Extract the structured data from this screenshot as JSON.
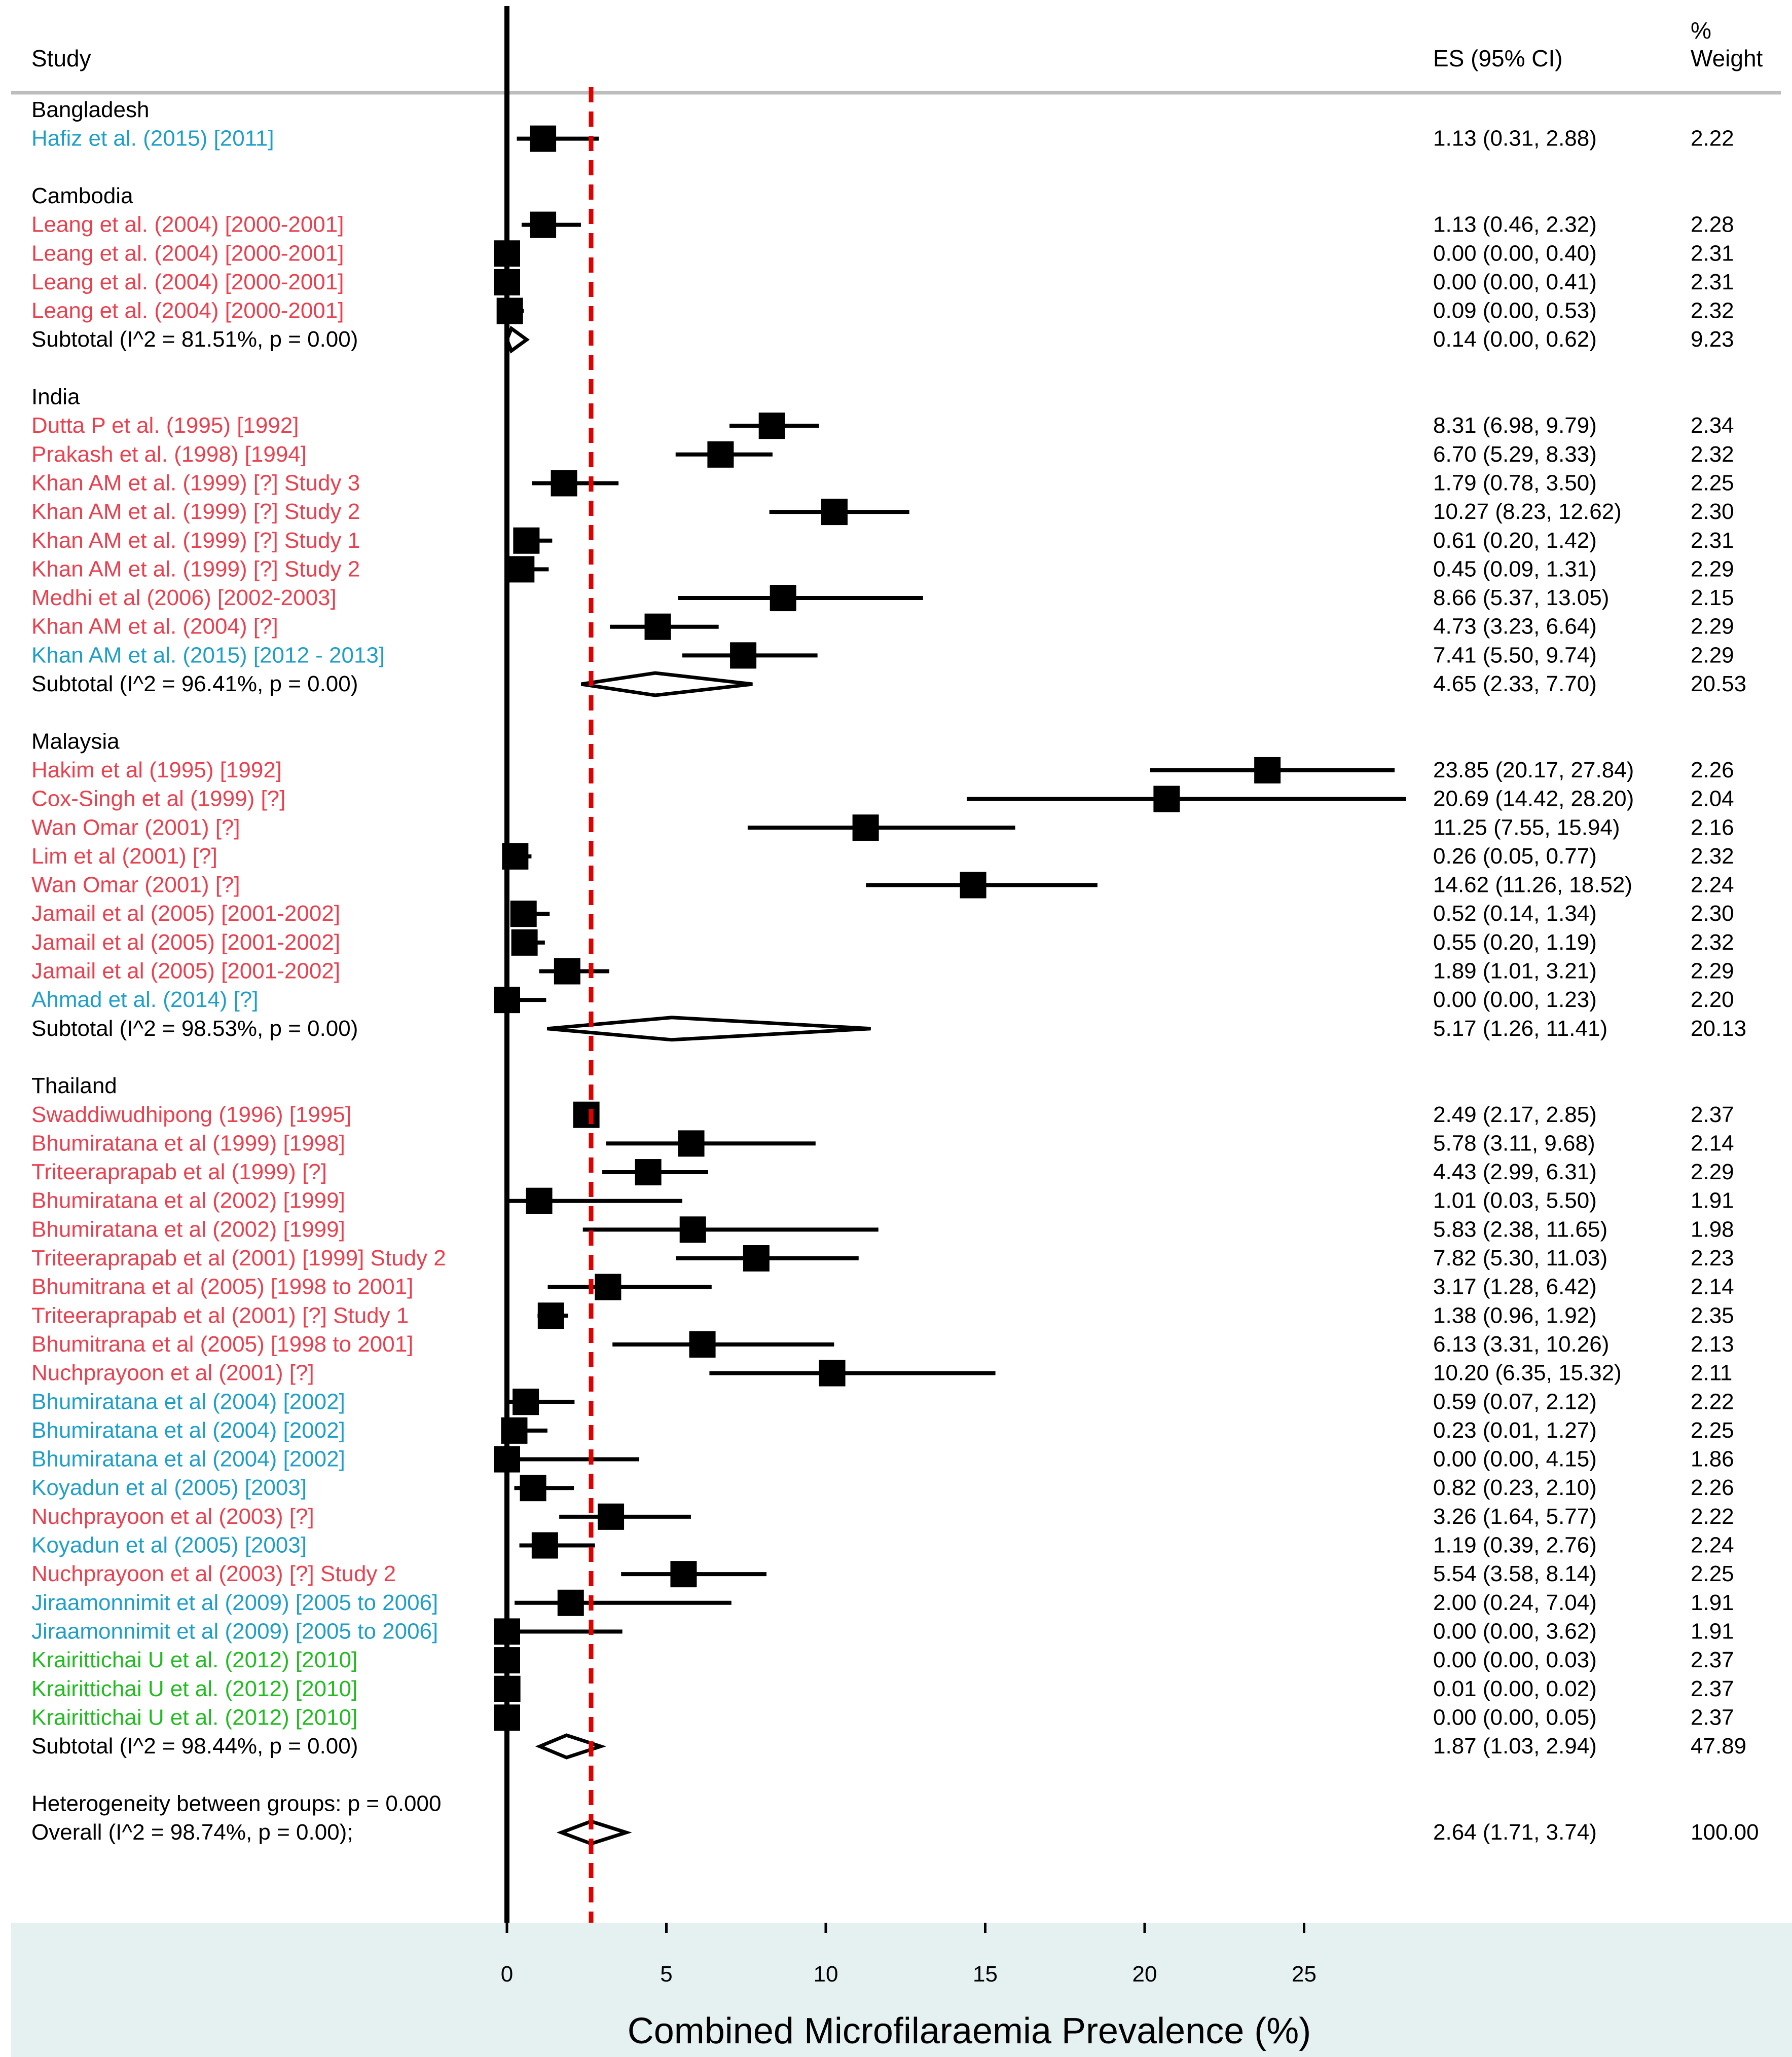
{
  "chart_data": {
    "type": "forest",
    "xlabel": "Combined Microfilaraemia Prevalence (%)",
    "xlim": [
      0,
      28
    ],
    "xticks": [
      0,
      5,
      10,
      15,
      20,
      25
    ],
    "reference_line": 2.64,
    "header": {
      "study": "Study",
      "es": "ES (95% CI)",
      "weight_line1": "%",
      "weight_line2": "Weight"
    },
    "legend_colors": {
      "red": "#e8414f",
      "blue": "#1f9fc8",
      "green": "#22bb22",
      "reference": "#e00000",
      "axis_band": "#e5f0f0"
    },
    "groups": [
      {
        "name": "Bangladesh",
        "studies": [
          {
            "label": "Hafiz et al. (2015) [2011]",
            "es": 1.13,
            "lo": 0.31,
            "hi": 2.88,
            "ci_text": "1.13 (0.31, 2.88)",
            "weight": "2.22",
            "color": "blue"
          }
        ],
        "subtotal": null
      },
      {
        "name": "Cambodia",
        "studies": [
          {
            "label": "Leang et al. (2004) [2000-2001]",
            "es": 1.13,
            "lo": 0.46,
            "hi": 2.32,
            "ci_text": "1.13 (0.46, 2.32)",
            "weight": "2.28",
            "color": "red"
          },
          {
            "label": "Leang et al. (2004) [2000-2001]",
            "es": 0.0,
            "lo": 0.0,
            "hi": 0.4,
            "ci_text": "0.00 (0.00, 0.40)",
            "weight": "2.31",
            "color": "red"
          },
          {
            "label": "Leang et al. (2004) [2000-2001]",
            "es": 0.0,
            "lo": 0.0,
            "hi": 0.41,
            "ci_text": "0.00 (0.00, 0.41)",
            "weight": "2.31",
            "color": "red"
          },
          {
            "label": "Leang et al. (2004) [2000-2001]",
            "es": 0.09,
            "lo": 0.0,
            "hi": 0.53,
            "ci_text": "0.09 (0.00, 0.53)",
            "weight": "2.32",
            "color": "red"
          }
        ],
        "subtotal": {
          "label": "Subtotal  (I^2 = 81.51%, p = 0.00)",
          "es": 0.14,
          "lo": 0.0,
          "hi": 0.62,
          "ci_text": "0.14 (0.00, 0.62)",
          "weight": "9.23"
        }
      },
      {
        "name": "India",
        "studies": [
          {
            "label": "Dutta P et al. (1995) [1992]",
            "es": 8.31,
            "lo": 6.98,
            "hi": 9.79,
            "ci_text": "8.31 (6.98, 9.79)",
            "weight": "2.34",
            "color": "red"
          },
          {
            "label": "Prakash et al. (1998) [1994]",
            "es": 6.7,
            "lo": 5.29,
            "hi": 8.33,
            "ci_text": "6.70 (5.29, 8.33)",
            "weight": "2.32",
            "color": "red"
          },
          {
            "label": "Khan AM et al. (1999) [?] Study 3",
            "es": 1.79,
            "lo": 0.78,
            "hi": 3.5,
            "ci_text": "1.79 (0.78, 3.50)",
            "weight": "2.25",
            "color": "red"
          },
          {
            "label": "Khan AM et al. (1999) [?] Study 2",
            "es": 10.27,
            "lo": 8.23,
            "hi": 12.62,
            "ci_text": "10.27 (8.23, 12.62)",
            "weight": "2.30",
            "color": "red"
          },
          {
            "label": "Khan AM et al. (1999) [?] Study 1",
            "es": 0.61,
            "lo": 0.2,
            "hi": 1.42,
            "ci_text": "0.61 (0.20, 1.42)",
            "weight": "2.31",
            "color": "red"
          },
          {
            "label": "Khan AM et al. (1999) [?] Study 2",
            "es": 0.45,
            "lo": 0.09,
            "hi": 1.31,
            "ci_text": "0.45 (0.09, 1.31)",
            "weight": "2.29",
            "color": "red"
          },
          {
            "label": "Medhi et al (2006) [2002-2003]",
            "es": 8.66,
            "lo": 5.37,
            "hi": 13.05,
            "ci_text": "8.66 (5.37, 13.05)",
            "weight": "2.15",
            "color": "red"
          },
          {
            "label": "Khan AM et al. (2004) [?]",
            "es": 4.73,
            "lo": 3.23,
            "hi": 6.64,
            "ci_text": "4.73 (3.23, 6.64)",
            "weight": "2.29",
            "color": "red"
          },
          {
            "label": "Khan AM et al. (2015) [2012 - 2013]",
            "es": 7.41,
            "lo": 5.5,
            "hi": 9.74,
            "ci_text": "7.41 (5.50, 9.74)",
            "weight": "2.29",
            "color": "blue"
          }
        ],
        "subtotal": {
          "label": "Subtotal  (I^2 = 96.41%, p = 0.00)",
          "es": 4.65,
          "lo": 2.33,
          "hi": 7.7,
          "ci_text": "4.65 (2.33, 7.70)",
          "weight": "20.53"
        }
      },
      {
        "name": "Malaysia",
        "studies": [
          {
            "label": "Hakim et al (1995) [1992]",
            "es": 23.85,
            "lo": 20.17,
            "hi": 27.84,
            "ci_text": "23.85 (20.17, 27.84)",
            "weight": "2.26",
            "color": "red"
          },
          {
            "label": "Cox-Singh et al (1999) [?]",
            "es": 20.69,
            "lo": 14.42,
            "hi": 28.2,
            "ci_text": "20.69 (14.42, 28.20)",
            "weight": "2.04",
            "color": "red"
          },
          {
            "label": "Wan Omar (2001) [?]",
            "es": 11.25,
            "lo": 7.55,
            "hi": 15.94,
            "ci_text": "11.25 (7.55, 15.94)",
            "weight": "2.16",
            "color": "red"
          },
          {
            "label": "Lim et al (2001) [?]",
            "es": 0.26,
            "lo": 0.05,
            "hi": 0.77,
            "ci_text": "0.26 (0.05, 0.77)",
            "weight": "2.32",
            "color": "red"
          },
          {
            "label": "Wan Omar (2001) [?]",
            "es": 14.62,
            "lo": 11.26,
            "hi": 18.52,
            "ci_text": "14.62 (11.26, 18.52)",
            "weight": "2.24",
            "color": "red"
          },
          {
            "label": "Jamail et al (2005) [2001-2002]",
            "es": 0.52,
            "lo": 0.14,
            "hi": 1.34,
            "ci_text": "0.52 (0.14, 1.34)",
            "weight": "2.30",
            "color": "red"
          },
          {
            "label": "Jamail et al (2005) [2001-2002]",
            "es": 0.55,
            "lo": 0.2,
            "hi": 1.19,
            "ci_text": "0.55 (0.20, 1.19)",
            "weight": "2.32",
            "color": "red"
          },
          {
            "label": "Jamail et al (2005) [2001-2002]",
            "es": 1.89,
            "lo": 1.01,
            "hi": 3.21,
            "ci_text": "1.89 (1.01, 3.21)",
            "weight": "2.29",
            "color": "red"
          },
          {
            "label": "Ahmad et al. (2014) [?]",
            "es": 0.0,
            "lo": 0.0,
            "hi": 1.23,
            "ci_text": "0.00 (0.00, 1.23)",
            "weight": "2.20",
            "color": "blue"
          }
        ],
        "subtotal": {
          "label": "Subtotal  (I^2 = 98.53%, p = 0.00)",
          "es": 5.17,
          "lo": 1.26,
          "hi": 11.41,
          "ci_text": "5.17 (1.26, 11.41)",
          "weight": "20.13"
        }
      },
      {
        "name": "Thailand",
        "studies": [
          {
            "label": "Swaddiwudhipong (1996) [1995]",
            "es": 2.49,
            "lo": 2.17,
            "hi": 2.85,
            "ci_text": "2.49 (2.17, 2.85)",
            "weight": "2.37",
            "color": "red"
          },
          {
            "label": "Bhumiratana et al (1999) [1998]",
            "es": 5.78,
            "lo": 3.11,
            "hi": 9.68,
            "ci_text": "5.78 (3.11, 9.68)",
            "weight": "2.14",
            "color": "red"
          },
          {
            "label": "Triteeraprapab et al (1999) [?]",
            "es": 4.43,
            "lo": 2.99,
            "hi": 6.31,
            "ci_text": "4.43 (2.99, 6.31)",
            "weight": "2.29",
            "color": "red"
          },
          {
            "label": "Bhumiratana et al (2002) [1999]",
            "es": 1.01,
            "lo": 0.03,
            "hi": 5.5,
            "ci_text": "1.01 (0.03, 5.50)",
            "weight": "1.91",
            "color": "red"
          },
          {
            "label": "Bhumiratana et al (2002) [1999]",
            "es": 5.83,
            "lo": 2.38,
            "hi": 11.65,
            "ci_text": "5.83 (2.38, 11.65)",
            "weight": "1.98",
            "color": "red"
          },
          {
            "label": "Triteeraprapab et al (2001) [1999] Study 2",
            "es": 7.82,
            "lo": 5.3,
            "hi": 11.03,
            "ci_text": "7.82 (5.30, 11.03)",
            "weight": "2.23",
            "color": "red"
          },
          {
            "label": "Bhumitrana et al (2005) [1998 to 2001]",
            "es": 3.17,
            "lo": 1.28,
            "hi": 6.42,
            "ci_text": "3.17 (1.28, 6.42)",
            "weight": "2.14",
            "color": "red"
          },
          {
            "label": "Triteeraprapab et al (2001) [?] Study 1",
            "es": 1.38,
            "lo": 0.96,
            "hi": 1.92,
            "ci_text": "1.38 (0.96, 1.92)",
            "weight": "2.35",
            "color": "red"
          },
          {
            "label": "Bhumitrana et al (2005) [1998 to 2001]",
            "es": 6.13,
            "lo": 3.31,
            "hi": 10.26,
            "ci_text": "6.13 (3.31, 10.26)",
            "weight": "2.13",
            "color": "red"
          },
          {
            "label": "Nuchprayoon et al (2001) [?]",
            "es": 10.2,
            "lo": 6.35,
            "hi": 15.32,
            "ci_text": "10.20 (6.35, 15.32)",
            "weight": "2.11",
            "color": "red"
          },
          {
            "label": "Bhumiratana et al (2004) [2002]",
            "es": 0.59,
            "lo": 0.07,
            "hi": 2.12,
            "ci_text": "0.59 (0.07, 2.12)",
            "weight": "2.22",
            "color": "blue"
          },
          {
            "label": "Bhumiratana et al (2004) [2002]",
            "es": 0.23,
            "lo": 0.01,
            "hi": 1.27,
            "ci_text": "0.23 (0.01, 1.27)",
            "weight": "2.25",
            "color": "blue"
          },
          {
            "label": "Bhumiratana et al (2004) [2002]",
            "es": 0.0,
            "lo": 0.0,
            "hi": 4.15,
            "ci_text": "0.00 (0.00, 4.15)",
            "weight": "1.86",
            "color": "blue"
          },
          {
            "label": "Koyadun et al (2005) [2003]",
            "es": 0.82,
            "lo": 0.23,
            "hi": 2.1,
            "ci_text": "0.82 (0.23, 2.10)",
            "weight": "2.26",
            "color": "blue"
          },
          {
            "label": "Nuchprayoon et al (2003) [?]",
            "es": 3.26,
            "lo": 1.64,
            "hi": 5.77,
            "ci_text": "3.26 (1.64, 5.77)",
            "weight": "2.22",
            "color": "red"
          },
          {
            "label": "Koyadun et al (2005) [2003]",
            "es": 1.19,
            "lo": 0.39,
            "hi": 2.76,
            "ci_text": "1.19 (0.39, 2.76)",
            "weight": "2.24",
            "color": "blue"
          },
          {
            "label": "Nuchprayoon et al (2003) [?] Study 2",
            "es": 5.54,
            "lo": 3.58,
            "hi": 8.14,
            "ci_text": "5.54 (3.58, 8.14)",
            "weight": "2.25",
            "color": "red"
          },
          {
            "label": "Jiraamonnimit et al (2009) [2005 to 2006]",
            "es": 2.0,
            "lo": 0.24,
            "hi": 7.04,
            "ci_text": "2.00 (0.24, 7.04)",
            "weight": "1.91",
            "color": "blue"
          },
          {
            "label": "Jiraamonnimit et al (2009) [2005 to 2006]",
            "es": 0.0,
            "lo": 0.0,
            "hi": 3.62,
            "ci_text": "0.00 (0.00, 3.62)",
            "weight": "1.91",
            "color": "blue"
          },
          {
            "label": "Krairittichai U et al. (2012) [2010]",
            "es": 0.0,
            "lo": 0.0,
            "hi": 0.03,
            "ci_text": "0.00 (0.00, 0.03)",
            "weight": "2.37",
            "color": "green"
          },
          {
            "label": "Krairittichai U et al. (2012) [2010]",
            "es": 0.01,
            "lo": 0.0,
            "hi": 0.02,
            "ci_text": "0.01 (0.00, 0.02)",
            "weight": "2.37",
            "color": "green"
          },
          {
            "label": "Krairittichai U et al. (2012) [2010]",
            "es": 0.0,
            "lo": 0.0,
            "hi": 0.05,
            "ci_text": "0.00 (0.00, 0.05)",
            "weight": "2.37",
            "color": "green"
          }
        ],
        "subtotal": {
          "label": "Subtotal  (I^2 = 98.44%, p = 0.00)",
          "es": 1.87,
          "lo": 1.03,
          "hi": 2.94,
          "ci_text": "1.87 (1.03, 2.94)",
          "weight": "47.89"
        }
      }
    ],
    "heterogeneity": "Heterogeneity between groups: p = 0.000",
    "overall": {
      "label": "Overall  (I^2 = 98.74%, p = 0.00);",
      "es": 2.64,
      "lo": 1.71,
      "hi": 3.74,
      "ci_text": "2.64 (1.71, 3.74)",
      "weight": "100.00"
    }
  }
}
